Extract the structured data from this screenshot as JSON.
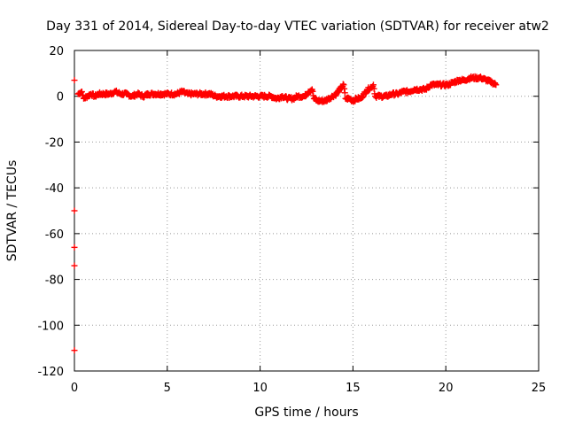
{
  "chart_data": {
    "type": "scatter",
    "title": "Day 331 of 2014, Sidereal Day-to-day VTEC variation (SDTVAR) for receiver atw2",
    "xlabel": "GPS time / hours",
    "ylabel": "SDTVAR / TECUs",
    "xlim": [
      0,
      25
    ],
    "ylim": [
      -120,
      20
    ],
    "xticks": [
      0,
      5,
      10,
      15,
      20,
      25
    ],
    "yticks": [
      -120,
      -100,
      -80,
      -60,
      -40,
      -20,
      0,
      20
    ],
    "xtick_labels": [
      "0",
      "5",
      "10",
      "15",
      "20",
      "25"
    ],
    "ytick_labels": [
      "-120",
      "-100",
      "-80",
      "-60",
      "-40",
      "-20",
      "0",
      "20"
    ],
    "grid": true,
    "grid_style": "dotted",
    "series_color": "#ff0000",
    "series": [
      {
        "name": "SDTVAR",
        "points": [
          [
            0.0,
            7
          ],
          [
            0.0,
            -50
          ],
          [
            0.0,
            -66
          ],
          [
            0.0,
            -74
          ],
          [
            0.0,
            -111
          ],
          [
            0.2,
            1
          ],
          [
            0.4,
            2
          ],
          [
            0.5,
            -1
          ],
          [
            0.7,
            0
          ],
          [
            0.9,
            1
          ],
          [
            1.1,
            0
          ],
          [
            1.3,
            1
          ],
          [
            1.6,
            1
          ],
          [
            1.9,
            1
          ],
          [
            2.2,
            2
          ],
          [
            2.5,
            1
          ],
          [
            2.8,
            1
          ],
          [
            3.1,
            0
          ],
          [
            3.4,
            1
          ],
          [
            3.7,
            0
          ],
          [
            4.0,
            1
          ],
          [
            4.3,
            1
          ],
          [
            4.6,
            1
          ],
          [
            4.9,
            1
          ],
          [
            5.2,
            1
          ],
          [
            5.5,
            1
          ],
          [
            5.8,
            2
          ],
          [
            6.1,
            1
          ],
          [
            6.4,
            1
          ],
          [
            6.7,
            1
          ],
          [
            7.0,
            1
          ],
          [
            7.3,
            1
          ],
          [
            7.6,
            0
          ],
          [
            7.9,
            0
          ],
          [
            8.2,
            0
          ],
          [
            8.5,
            0
          ],
          [
            8.8,
            0
          ],
          [
            9.1,
            0
          ],
          [
            9.4,
            0
          ],
          [
            9.7,
            0
          ],
          [
            10.0,
            0
          ],
          [
            10.3,
            0
          ],
          [
            10.6,
            0
          ],
          [
            10.9,
            -1
          ],
          [
            11.2,
            0
          ],
          [
            11.5,
            -1
          ],
          [
            11.8,
            -1
          ],
          [
            12.0,
            0
          ],
          [
            12.4,
            0
          ],
          [
            12.6,
            2
          ],
          [
            12.8,
            3
          ],
          [
            12.9,
            -1
          ],
          [
            13.1,
            -2
          ],
          [
            13.3,
            -2
          ],
          [
            13.5,
            -2
          ],
          [
            13.7,
            -1
          ],
          [
            13.9,
            0
          ],
          [
            14.1,
            1
          ],
          [
            14.3,
            3
          ],
          [
            14.5,
            5
          ],
          [
            14.6,
            -1
          ],
          [
            14.8,
            -1
          ],
          [
            15.0,
            -2
          ],
          [
            15.2,
            -1
          ],
          [
            15.4,
            -1
          ],
          [
            15.6,
            1
          ],
          [
            15.8,
            3
          ],
          [
            16.0,
            4
          ],
          [
            16.1,
            5
          ],
          [
            16.2,
            0
          ],
          [
            16.5,
            0
          ],
          [
            16.8,
            0
          ],
          [
            17.1,
            1
          ],
          [
            17.4,
            1
          ],
          [
            17.7,
            2
          ],
          [
            18.0,
            2
          ],
          [
            18.3,
            3
          ],
          [
            18.6,
            3
          ],
          [
            18.9,
            3
          ],
          [
            19.2,
            5
          ],
          [
            19.5,
            5
          ],
          [
            19.8,
            5
          ],
          [
            20.1,
            5
          ],
          [
            20.4,
            6
          ],
          [
            20.7,
            7
          ],
          [
            21.0,
            7
          ],
          [
            21.3,
            8
          ],
          [
            21.6,
            8
          ],
          [
            21.9,
            8
          ],
          [
            22.2,
            7
          ],
          [
            22.5,
            6
          ],
          [
            22.7,
            5
          ]
        ]
      }
    ]
  }
}
